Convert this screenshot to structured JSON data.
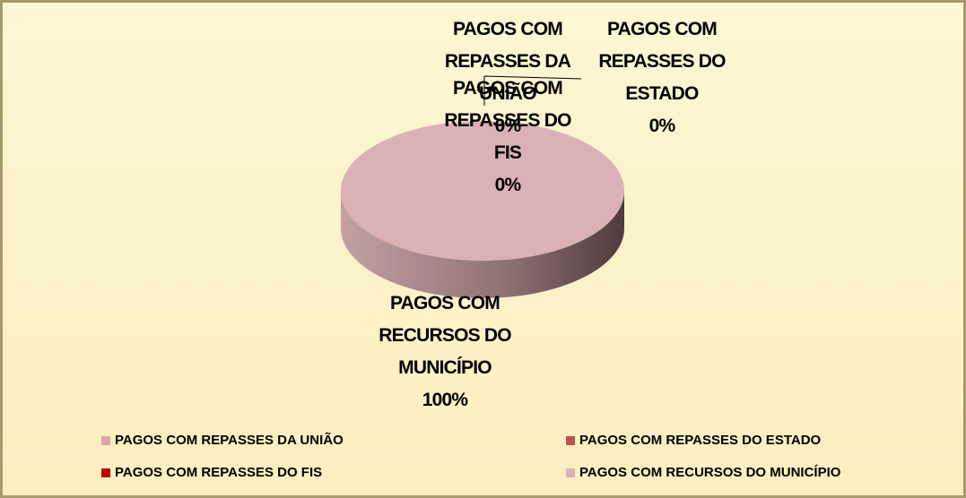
{
  "chart_data": {
    "type": "pie",
    "categories": [
      "PAGOS COM REPASSES DA UNIÃO",
      "PAGOS COM REPASSES DO ESTADO",
      "PAGOS COM REPASSES DO FIS",
      "PAGOS COM RECURSOS DO MUNICÍPIO"
    ],
    "values": [
      0,
      0,
      0,
      100
    ],
    "value_labels": [
      "0%",
      "0%",
      "0%",
      "100%"
    ],
    "colors": [
      "#e0a3a5",
      "#c0504d",
      "#c00000",
      "#d9b1b6"
    ],
    "legend": "bottom"
  }
}
